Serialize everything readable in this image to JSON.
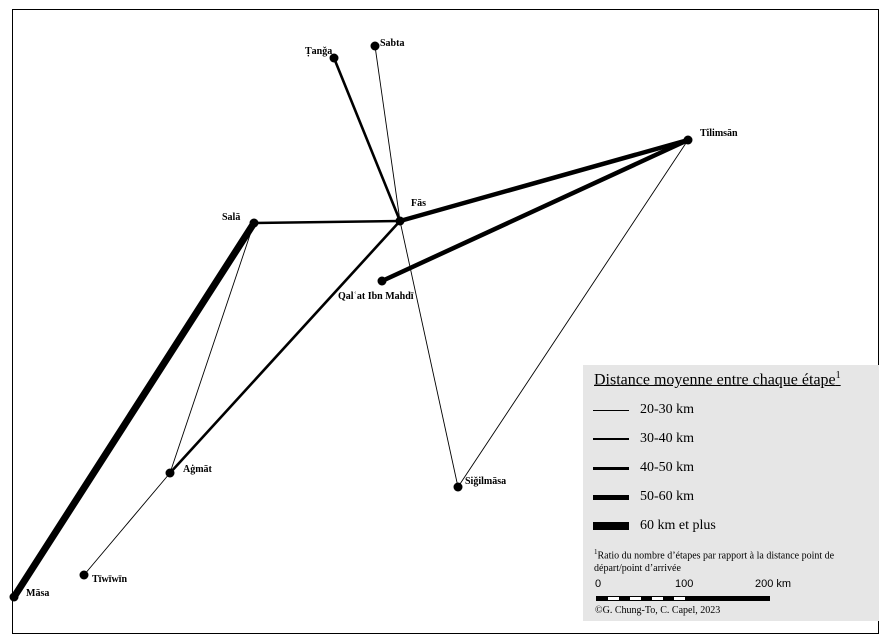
{
  "map": {
    "cities": [
      {
        "id": "tanga",
        "name": "Ṭanǧa"
      },
      {
        "id": "sabta",
        "name": "Sabta"
      },
      {
        "id": "tilimsan",
        "name": "Tilimsān"
      },
      {
        "id": "fas",
        "name": "Fās"
      },
      {
        "id": "sala",
        "name": "Salā"
      },
      {
        "id": "qalat",
        "name": "Qalʿat Ibn Mahdī"
      },
      {
        "id": "agmat",
        "name": "Aġmāt"
      },
      {
        "id": "sigilmasa",
        "name": "Siǧilmāsa"
      },
      {
        "id": "tiwiwin",
        "name": "Tīwīwīn"
      },
      {
        "id": "masa",
        "name": "Māsa"
      }
    ],
    "routes": [
      {
        "from": "tanga",
        "to": "fas",
        "category": "40-50 km"
      },
      {
        "from": "sabta",
        "to": "fas",
        "category": "20-30 km"
      },
      {
        "from": "fas",
        "to": "tilimsan",
        "category": "50-60 km"
      },
      {
        "from": "qalat",
        "to": "tilimsan",
        "category": "50-60 km"
      },
      {
        "from": "sala",
        "to": "fas",
        "category": "40-50 km"
      },
      {
        "from": "fas",
        "to": "agmat",
        "category": "40-50 km"
      },
      {
        "from": "fas",
        "to": "sigilmasa",
        "category": "20-30 km"
      },
      {
        "from": "tilimsan",
        "to": "sigilmasa",
        "category": "20-30 km"
      },
      {
        "from": "sala",
        "to": "agmat",
        "category": "20-30 km"
      },
      {
        "from": "agmat",
        "to": "tiwiwin",
        "category": "20-30 km"
      },
      {
        "from": "sala",
        "to": "masa",
        "category": "60 km et plus"
      }
    ]
  },
  "legend": {
    "title": "Distance moyenne entre chaque étape",
    "title_note": "1",
    "items": [
      {
        "label": "20-30 km"
      },
      {
        "label": "30-40 km"
      },
      {
        "label": "40-50 km"
      },
      {
        "label": "50-60 km"
      },
      {
        "label": "60 km et plus"
      }
    ],
    "note_mark": "1",
    "note": "Ratio du nombre d’étapes par rapport à la distance point de départ/point d’arrivée",
    "scale_labels": [
      "0",
      "100",
      "200 km"
    ],
    "credit": "©G. Chung-To, C. Capel, 2023"
  }
}
